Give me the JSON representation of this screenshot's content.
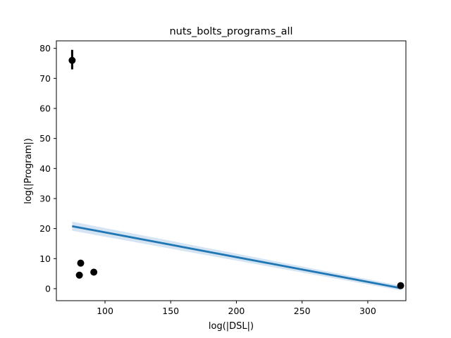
{
  "chart_data": {
    "type": "scatter",
    "title": "nuts_bolts_programs_all",
    "xlabel": "log(|DSL|)",
    "ylabel": "log(|Program|)",
    "xlim": [
      63,
      329
    ],
    "ylim": [
      -4,
      82.5
    ],
    "xticks": [
      100,
      150,
      200,
      250,
      300
    ],
    "yticks": [
      0,
      10,
      20,
      30,
      40,
      50,
      60,
      70,
      80
    ],
    "grid": false,
    "points": [
      {
        "x": 75,
        "y": 76,
        "err_low": 73,
        "err_high": 79.5
      },
      {
        "x": 80.5,
        "y": 4.5
      },
      {
        "x": 81.5,
        "y": 8.5
      },
      {
        "x": 91.5,
        "y": 5.5
      },
      {
        "x": 325,
        "y": 1
      }
    ],
    "regression": {
      "x": [
        75,
        325
      ],
      "y": [
        20.8,
        0.2
      ],
      "ci_start": [
        19.3,
        22.3
      ],
      "ci_end": [
        -0.6,
        1.0
      ]
    },
    "colors": {
      "points": "#000000",
      "regression_line": "#1f77b4",
      "confidence_band": "#c6dbef"
    }
  }
}
